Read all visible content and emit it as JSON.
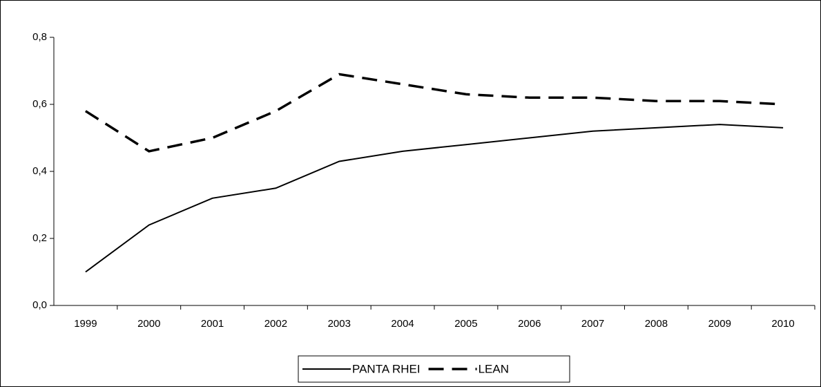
{
  "chart_data": {
    "type": "line",
    "categories": [
      "1999",
      "2000",
      "2001",
      "2002",
      "2003",
      "2004",
      "2005",
      "2006",
      "2007",
      "2008",
      "2009",
      "2010"
    ],
    "series": [
      {
        "name": "PANTA RHEI",
        "color": "#000000",
        "style": "solid",
        "values": [
          0.1,
          0.24,
          0.32,
          0.35,
          0.43,
          0.46,
          0.48,
          0.5,
          0.52,
          0.53,
          0.54,
          0.53
        ]
      },
      {
        "name": "LEAN",
        "color": "#000000",
        "style": "dashed",
        "values": [
          0.58,
          0.46,
          0.5,
          0.58,
          0.69,
          0.66,
          0.63,
          0.62,
          0.62,
          0.61,
          0.61,
          0.6
        ]
      }
    ],
    "ylim": [
      0,
      0.8
    ],
    "yticks": [
      {
        "value": 0,
        "label": "0,0"
      },
      {
        "value": 0.2,
        "label": "0,2"
      },
      {
        "value": 0.4,
        "label": "0,4"
      },
      {
        "value": 0.6,
        "label": "0,6"
      },
      {
        "value": 0.8,
        "label": "0,8"
      }
    ],
    "legend": "bottom"
  }
}
